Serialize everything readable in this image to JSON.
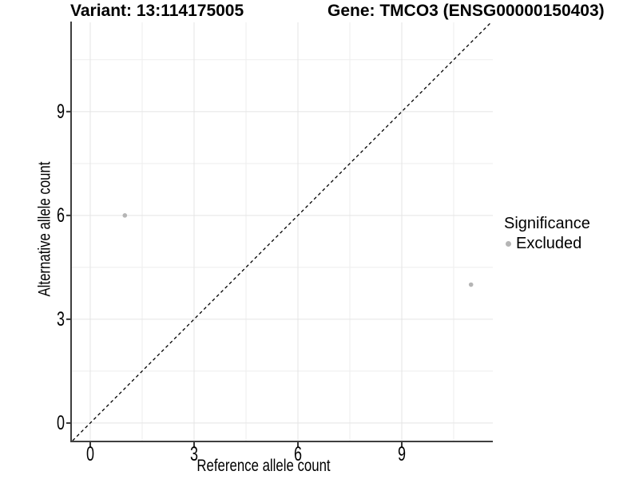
{
  "titles": {
    "left": "Variant: 13:114175005",
    "right": "Gene: TMCO3 (ENSG00000150403)"
  },
  "chart_data": {
    "type": "scatter",
    "xlabel": "Reference allele count",
    "ylabel": "Alternative allele count",
    "xlim": [
      -0.53,
      11.63
    ],
    "ylim": [
      -0.51,
      11.58
    ],
    "xticks": [
      0,
      3,
      6,
      9
    ],
    "yticks": [
      0,
      3,
      6,
      9
    ],
    "minor_gridlines_x": [
      1.5,
      4.5,
      7.5,
      10.5
    ],
    "minor_gridlines_y": [
      1.5,
      4.5,
      7.5,
      10.5
    ],
    "grid": "major+minor",
    "points": [
      {
        "x": 1,
        "y": 6,
        "series": "Excluded"
      },
      {
        "x": 11,
        "y": 4,
        "series": "Excluded"
      }
    ],
    "identity_line": {
      "style": "dashed",
      "slope": 1,
      "intercept": 0
    },
    "legend": {
      "title": "Significance",
      "position": "right",
      "items": [
        {
          "label": "Excluded",
          "color": "#b5b5b5"
        }
      ]
    },
    "colors": {
      "point": "#b5b5b5",
      "grid_major": "#e4e4e4",
      "grid_minor": "#eeeeee",
      "axis": "#3f3f3f",
      "tick": "#333333",
      "dashed_line": "#000000"
    }
  }
}
